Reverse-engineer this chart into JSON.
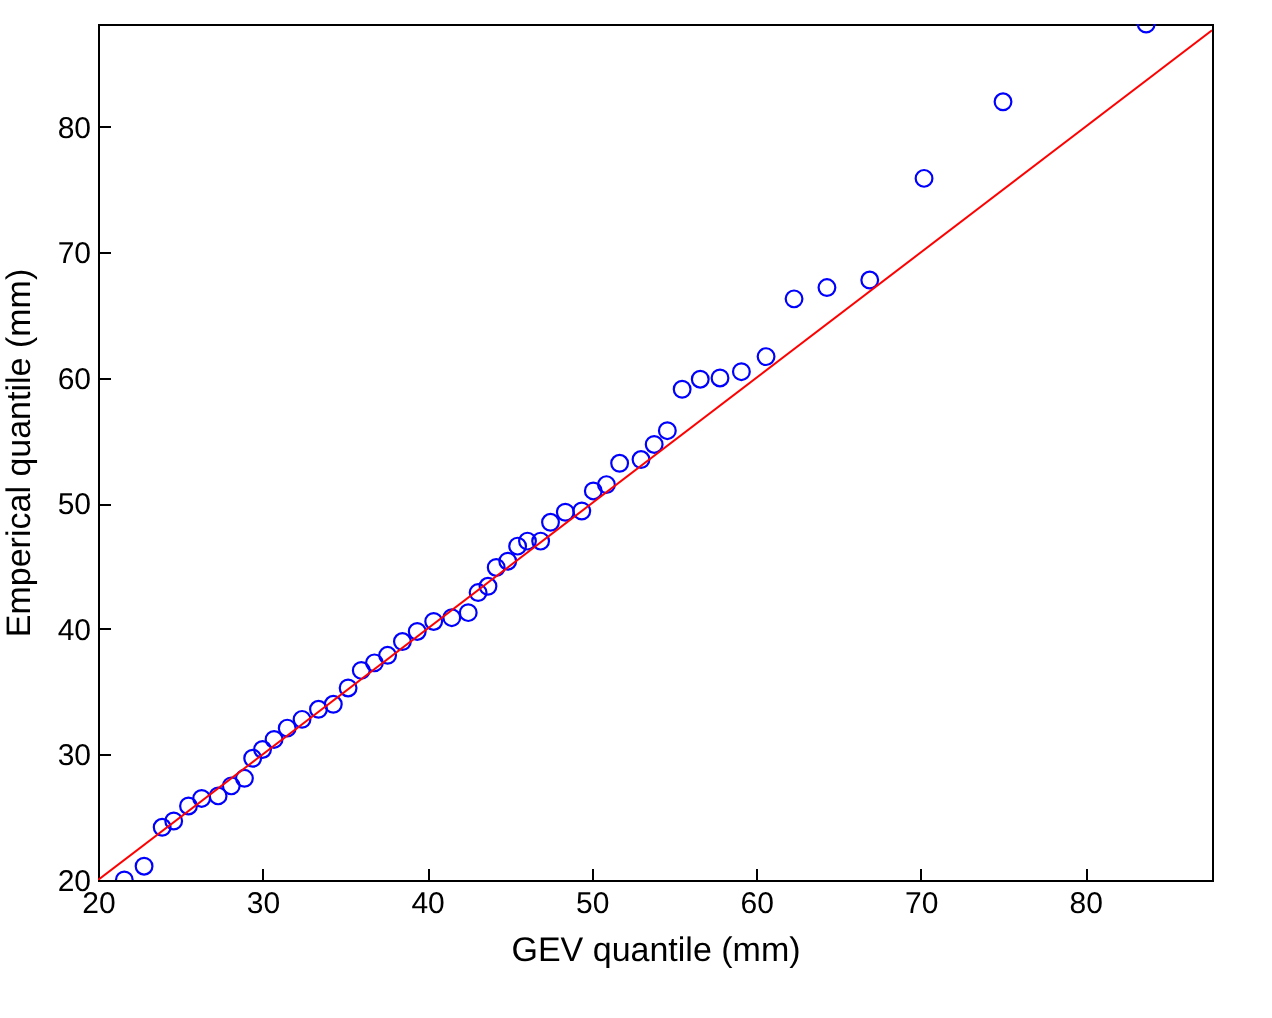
{
  "chart_data": {
    "type": "scatter",
    "xlabel": "GEV quantile (mm)",
    "ylabel": "Emperical quantile (mm)",
    "xlim": [
      20,
      87.7
    ],
    "ylim": [
      20,
      88.2
    ],
    "xticks": [
      20,
      30,
      40,
      50,
      60,
      70,
      80
    ],
    "yticks": [
      20,
      30,
      40,
      50,
      60,
      70,
      80
    ],
    "grid": false,
    "marker": "circle",
    "series": [
      {
        "color": "#0000ff",
        "x": [
          21.6,
          22.8,
          23.9,
          24.6,
          25.5,
          26.3,
          27.3,
          28.1,
          28.9,
          29.4,
          30.0,
          30.7,
          31.5,
          32.4,
          33.4,
          34.3,
          35.2,
          36.0,
          36.8,
          37.6,
          38.5,
          39.4,
          40.4,
          41.5,
          42.5,
          43.1,
          43.7,
          44.2,
          44.9,
          45.5,
          46.1,
          46.9,
          47.5,
          48.4,
          49.4,
          50.1,
          50.9,
          51.7,
          53.0,
          53.8,
          54.6,
          55.5,
          56.6,
          57.8,
          59.1,
          60.6,
          62.3,
          64.3,
          66.9,
          70.2,
          75.0,
          83.7
        ],
        "values": [
          20.0,
          21.1,
          24.2,
          24.7,
          25.9,
          26.5,
          26.7,
          27.5,
          28.1,
          29.7,
          30.4,
          31.2,
          32.1,
          32.8,
          33.6,
          34.0,
          35.3,
          36.7,
          37.3,
          37.9,
          39.0,
          39.8,
          40.6,
          40.9,
          41.3,
          42.9,
          43.4,
          44.9,
          45.4,
          46.6,
          47.0,
          47.0,
          48.5,
          49.3,
          49.4,
          51.0,
          51.5,
          53.2,
          53.5,
          54.7,
          55.8,
          59.1,
          59.9,
          60.0,
          60.5,
          61.7,
          66.3,
          67.2,
          67.8,
          75.9,
          82.0,
          88.2
        ]
      },
      {
        "type": "line",
        "color": "#ff0000",
        "marker": "none",
        "x": [
          20,
          87.7
        ],
        "values": [
          20,
          87.7
        ]
      }
    ]
  }
}
